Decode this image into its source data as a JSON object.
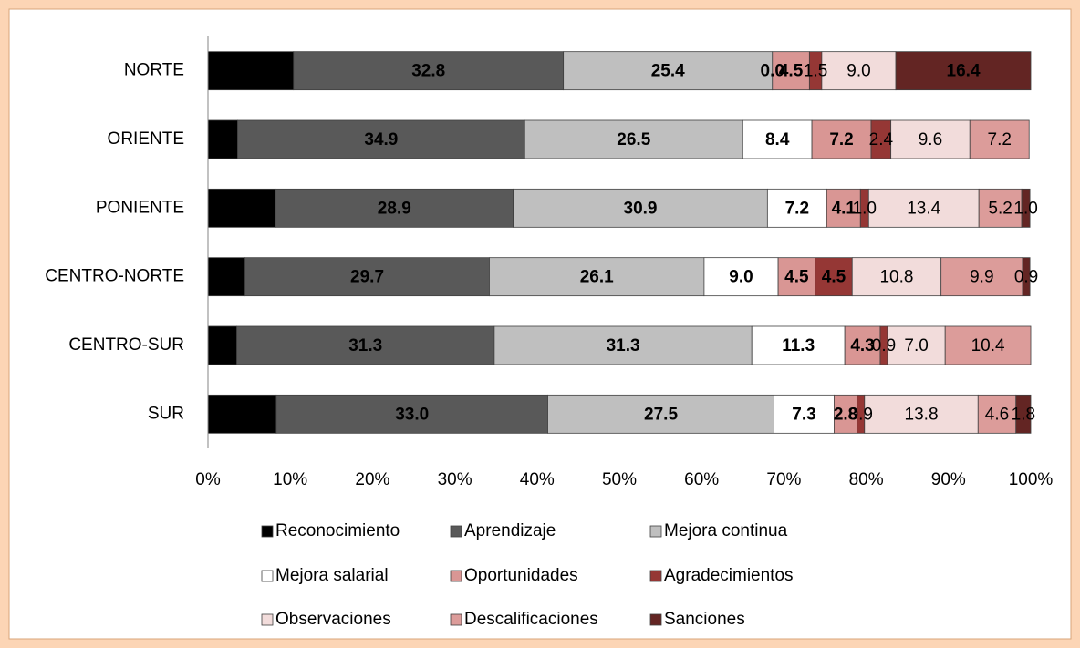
{
  "chart_data": {
    "type": "stacked_bar_horizontal",
    "categories": [
      "NORTE",
      "ORIENTE",
      "PONIENTE",
      "CENTRO-NORTE",
      "CENTRO-SUR",
      "SUR"
    ],
    "series": [
      {
        "name": "Reconocimiento",
        "color": "#000000",
        "values": [
          10.4,
          3.6,
          8.2,
          4.5,
          3.5,
          8.3
        ],
        "value_labels": [
          "10.4",
          "3.6",
          "8.2",
          "4.5",
          "3.5",
          "8.3"
        ]
      },
      {
        "name": "Aprendizaje",
        "color": "#595959",
        "values": [
          32.8,
          34.9,
          28.9,
          29.7,
          31.3,
          33.0
        ],
        "value_labels": [
          "32.8",
          "34.9",
          "28.9",
          "29.7",
          "31.3",
          "33.0"
        ]
      },
      {
        "name": "Mejora continua",
        "color": "#bfbfbf",
        "values": [
          25.4,
          26.5,
          30.9,
          26.1,
          31.3,
          27.5
        ],
        "value_labels": [
          "25.4",
          "26.5",
          "30.9",
          "26.1",
          "31.3",
          "27.5"
        ]
      },
      {
        "name": "Mejora salarial",
        "color": "#ffffff",
        "values": [
          0.0,
          8.4,
          7.2,
          9.0,
          11.3,
          7.3
        ],
        "value_labels": [
          "0.0",
          "8.4",
          "7.2",
          "9.0",
          "11.3",
          "7.3"
        ]
      },
      {
        "name": "Oportunidades",
        "color": "#d99694",
        "values": [
          4.5,
          7.2,
          4.1,
          4.5,
          4.3,
          2.8
        ],
        "value_labels": [
          "4.5",
          "7.2",
          "4.1",
          "4.5",
          "4.3",
          "2.8"
        ]
      },
      {
        "name": "Agradecimientos",
        "color": "#953735",
        "values": [
          1.5,
          2.4,
          1.0,
          4.5,
          0.9,
          0.9
        ],
        "value_labels": [
          "1.5",
          "2.4",
          "1.0",
          "4.5",
          "0.9",
          "0.9"
        ]
      },
      {
        "name": "Observaciones",
        "color": "#f2dcdb",
        "values": [
          9.0,
          9.6,
          13.4,
          10.8,
          7.0,
          13.8
        ],
        "value_labels": [
          "9.0",
          "9.6",
          "13.4",
          "10.8",
          "7.0",
          "13.8"
        ]
      },
      {
        "name": "Descalificaciones",
        "color": "#dc9c9a",
        "values": [
          null,
          7.2,
          5.2,
          9.9,
          10.4,
          4.6
        ],
        "value_labels": [
          null,
          "7.2",
          "5.2",
          "9.9",
          "10.4",
          "4.6"
        ]
      },
      {
        "name": "Sanciones",
        "color": "#632523",
        "values": [
          16.4,
          null,
          1.0,
          0.9,
          null,
          1.8
        ],
        "value_labels": [
          "16.4",
          null,
          "1.0",
          "0.9",
          null,
          "1.8"
        ]
      }
    ],
    "xlim": [
      0,
      100
    ],
    "xticks": [
      {
        "value": 0,
        "label": "0%"
      },
      {
        "value": 10,
        "label": "10%"
      },
      {
        "value": 20,
        "label": "20%"
      },
      {
        "value": 30,
        "label": "30%"
      },
      {
        "value": 40,
        "label": "40%"
      },
      {
        "value": 50,
        "label": "50%"
      },
      {
        "value": 60,
        "label": "60%"
      },
      {
        "value": 70,
        "label": "70%"
      },
      {
        "value": 80,
        "label": "80%"
      },
      {
        "value": 90,
        "label": "90%"
      },
      {
        "value": 100,
        "label": "100%"
      }
    ],
    "legend": "bottom"
  }
}
